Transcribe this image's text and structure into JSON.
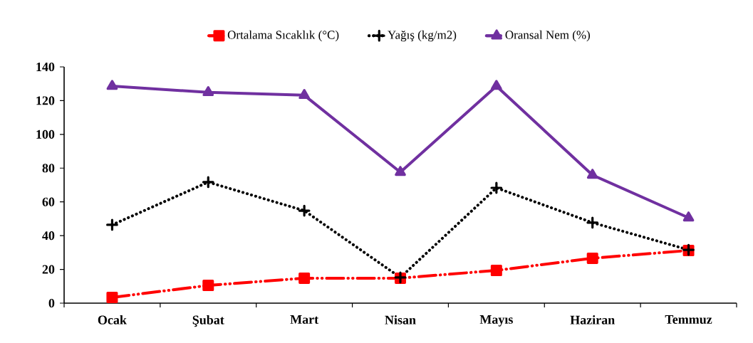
{
  "chart_data": {
    "type": "line",
    "categories": [
      "Ocak",
      "Şubat",
      "Mart",
      "Nisan",
      "Mayıs",
      "Haziran",
      "Temmuz"
    ],
    "series": [
      {
        "name": "Ortalama Sıcaklık (°C)",
        "color": "#ff0000",
        "marker": "square",
        "line_style": "dashed",
        "values": [
          3.4,
          10.5,
          14.8,
          14.8,
          19.4,
          26.6,
          31.2
        ]
      },
      {
        "name": "Yağış (kg/m2)",
        "color": "#000000",
        "marker": "cross",
        "line_style": "dotted",
        "values": [
          46.4,
          71.7,
          54.8,
          15.2,
          68.3,
          47.7,
          31.6
        ]
      },
      {
        "name": "Oransal Nem (%)",
        "color": "#7030a0",
        "marker": "triangle",
        "line_style": "solid",
        "values": [
          128.6,
          124.9,
          123.2,
          77.6,
          128.6,
          75.9,
          50.6
        ]
      }
    ],
    "ylim": [
      0,
      140
    ],
    "yticks": [
      0,
      20,
      40,
      60,
      80,
      100,
      120,
      140
    ],
    "legend": "top"
  }
}
